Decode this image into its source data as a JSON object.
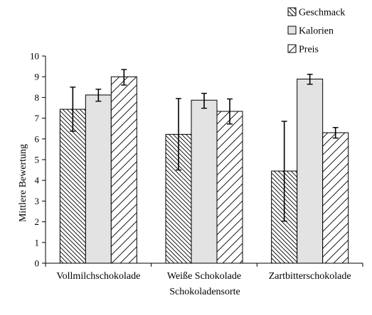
{
  "chart_data": {
    "type": "bar",
    "xlabel": "Schokoladensorte",
    "ylabel": "Mittlere Bewertung",
    "ylim": [
      0,
      10
    ],
    "yticks": [
      0,
      1,
      2,
      3,
      4,
      5,
      6,
      7,
      8,
      9,
      10
    ],
    "grid": false,
    "legend_position": "top-right",
    "error_bars": true,
    "categories": [
      "Vollmilchschokolade",
      "Weiße Schokolade",
      "Zartbitterschokolade"
    ],
    "series": [
      {
        "name": "Geschmack",
        "pattern": "hatch-backslash",
        "fill": "#ffffff",
        "values": [
          7.43,
          6.22,
          4.45
        ],
        "err_low": [
          6.37,
          4.5,
          2.03
        ],
        "err_high": [
          8.5,
          7.95,
          6.85
        ]
      },
      {
        "name": "Kalorien",
        "pattern": "solid",
        "fill": "#e3e3e3",
        "values": [
          8.12,
          7.87,
          8.89
        ],
        "err_low": [
          7.82,
          7.48,
          8.64
        ],
        "err_high": [
          8.4,
          8.2,
          9.12
        ]
      },
      {
        "name": "Preis",
        "pattern": "hatch-slash",
        "fill": "#ffffff",
        "values": [
          9.0,
          7.33,
          6.3
        ],
        "err_low": [
          8.6,
          6.72,
          6.04
        ],
        "err_high": [
          9.35,
          7.93,
          6.55
        ]
      }
    ]
  }
}
